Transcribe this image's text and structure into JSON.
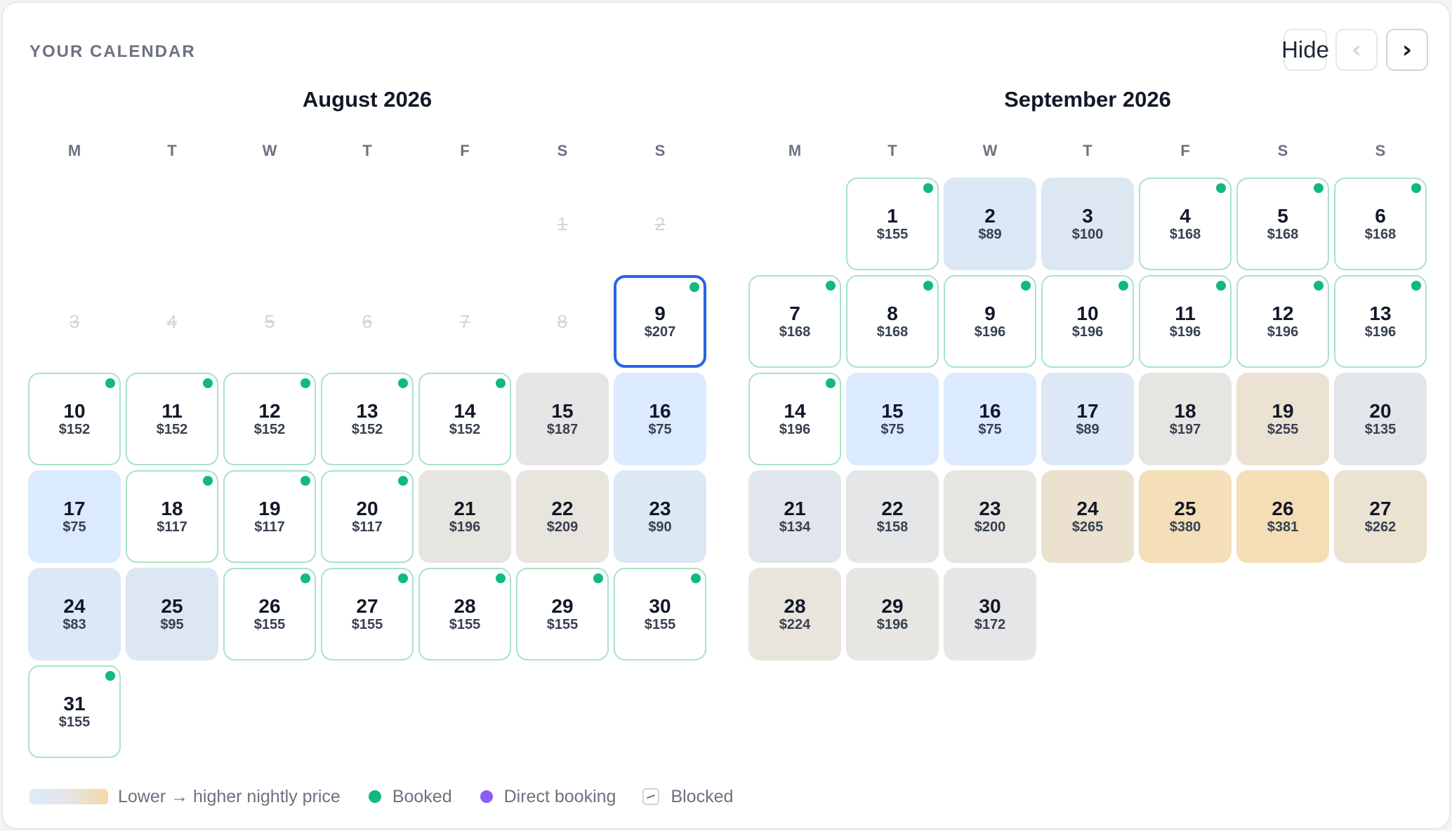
{
  "header": {
    "title": "YOUR CALENDAR",
    "hide_label": "Hide",
    "prev_icon": "‹",
    "next_icon": "›"
  },
  "colors": {
    "booked_dot": "#10b981",
    "direct_booking_dot": "#8b5cf6",
    "selected_border": "#2563eb",
    "price_low": "#dbeafe",
    "price_high": "#f5d8a8"
  },
  "weekday_labels": [
    "M",
    "T",
    "W",
    "T",
    "F",
    "S",
    "S"
  ],
  "months": [
    {
      "name": "August 2026",
      "first_weekday": 5,
      "days": [
        {
          "day": 1,
          "status": "past"
        },
        {
          "day": 2,
          "status": "past"
        },
        {
          "day": 3,
          "status": "past"
        },
        {
          "day": 4,
          "status": "past"
        },
        {
          "day": 5,
          "status": "past"
        },
        {
          "day": 6,
          "status": "past"
        },
        {
          "day": 7,
          "status": "past"
        },
        {
          "day": 8,
          "status": "past"
        },
        {
          "day": 9,
          "price": "$207",
          "status": "booked",
          "selected": true
        },
        {
          "day": 10,
          "price": "$152",
          "status": "booked"
        },
        {
          "day": 11,
          "price": "$152",
          "status": "booked"
        },
        {
          "day": 12,
          "price": "$152",
          "status": "booked"
        },
        {
          "day": 13,
          "price": "$152",
          "status": "booked"
        },
        {
          "day": 14,
          "price": "$152",
          "status": "booked"
        },
        {
          "day": 15,
          "price": "$187",
          "status": "available",
          "bg": "#e7e5e4"
        },
        {
          "day": 16,
          "price": "$75",
          "status": "available",
          "bg": "#dbeafe"
        },
        {
          "day": 17,
          "price": "$75",
          "status": "available",
          "bg": "#dbeafe"
        },
        {
          "day": 18,
          "price": "$117",
          "status": "booked"
        },
        {
          "day": 19,
          "price": "$117",
          "status": "booked"
        },
        {
          "day": 20,
          "price": "$117",
          "status": "booked"
        },
        {
          "day": 21,
          "price": "$196",
          "status": "available",
          "bg": "#e7e5e0"
        },
        {
          "day": 22,
          "price": "$209",
          "status": "available",
          "bg": "#e8e4de"
        },
        {
          "day": 23,
          "price": "$90",
          "status": "available",
          "bg": "#dde8f5"
        },
        {
          "day": 24,
          "price": "$83",
          "status": "available",
          "bg": "#dce8f7"
        },
        {
          "day": 25,
          "price": "$95",
          "status": "available",
          "bg": "#dde6f3"
        },
        {
          "day": 26,
          "price": "$155",
          "status": "booked"
        },
        {
          "day": 27,
          "price": "$155",
          "status": "booked"
        },
        {
          "day": 28,
          "price": "$155",
          "status": "booked"
        },
        {
          "day": 29,
          "price": "$155",
          "status": "booked"
        },
        {
          "day": 30,
          "price": "$155",
          "status": "booked"
        },
        {
          "day": 31,
          "price": "$155",
          "status": "booked"
        }
      ]
    },
    {
      "name": "September 2026",
      "first_weekday": 1,
      "days": [
        {
          "day": 1,
          "price": "$155",
          "status": "booked"
        },
        {
          "day": 2,
          "price": "$89",
          "status": "available",
          "bg": "#dce8f5"
        },
        {
          "day": 3,
          "price": "$100",
          "status": "available",
          "bg": "#dde7f2"
        },
        {
          "day": 4,
          "price": "$168",
          "status": "booked"
        },
        {
          "day": 5,
          "price": "$168",
          "status": "booked"
        },
        {
          "day": 6,
          "price": "$168",
          "status": "booked"
        },
        {
          "day": 7,
          "price": "$168",
          "status": "booked"
        },
        {
          "day": 8,
          "price": "$168",
          "status": "booked"
        },
        {
          "day": 9,
          "price": "$196",
          "status": "booked"
        },
        {
          "day": 10,
          "price": "$196",
          "status": "booked"
        },
        {
          "day": 11,
          "price": "$196",
          "status": "booked"
        },
        {
          "day": 12,
          "price": "$196",
          "status": "booked"
        },
        {
          "day": 13,
          "price": "$196",
          "status": "booked"
        },
        {
          "day": 14,
          "price": "$196",
          "status": "booked"
        },
        {
          "day": 15,
          "price": "$75",
          "status": "available",
          "bg": "#dbeafe"
        },
        {
          "day": 16,
          "price": "$75",
          "status": "available",
          "bg": "#dbeafe"
        },
        {
          "day": 17,
          "price": "$89",
          "status": "available",
          "bg": "#dce8f5"
        },
        {
          "day": 18,
          "price": "$197",
          "status": "available",
          "bg": "#e7e5e2"
        },
        {
          "day": 19,
          "price": "$255",
          "status": "available",
          "bg": "#ebe2d3"
        },
        {
          "day": 20,
          "price": "$135",
          "status": "available",
          "bg": "#e2e5ea"
        },
        {
          "day": 21,
          "price": "$134",
          "status": "available",
          "bg": "#e1e5ec"
        },
        {
          "day": 22,
          "price": "$158",
          "status": "available",
          "bg": "#e4e6e8"
        },
        {
          "day": 23,
          "price": "$200",
          "status": "available",
          "bg": "#e7e5e2"
        },
        {
          "day": 24,
          "price": "$265",
          "status": "available",
          "bg": "#ece1cf"
        },
        {
          "day": 25,
          "price": "$380",
          "status": "available",
          "bg": "#f5dfb8"
        },
        {
          "day": 26,
          "price": "$381",
          "status": "available",
          "bg": "#f5deb6"
        },
        {
          "day": 27,
          "price": "$262",
          "status": "available",
          "bg": "#ebe2d2"
        },
        {
          "day": 28,
          "price": "$224",
          "status": "available",
          "bg": "#e9e4dc"
        },
        {
          "day": 29,
          "price": "$196",
          "status": "available",
          "bg": "#e7e6e2"
        },
        {
          "day": 30,
          "price": "$172",
          "status": "available",
          "bg": "#e5e6e5"
        }
      ]
    }
  ],
  "legend": {
    "price_scale_label": "Lower → higher nightly price",
    "booked_label": "Booked",
    "direct_booking_label": "Direct booking",
    "blocked_label": "Blocked"
  }
}
